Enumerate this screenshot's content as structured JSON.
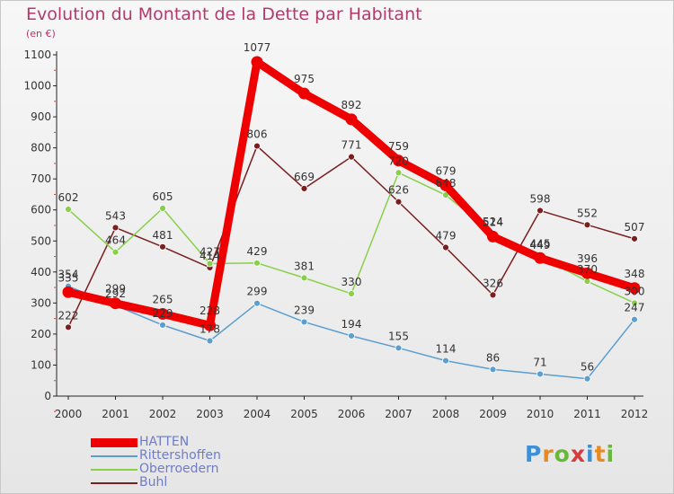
{
  "title": "Evolution du Montant de la Dette par Habitant",
  "unit": "(en €)",
  "brand": {
    "letters": [
      "P",
      "r",
      "o",
      "x",
      "i",
      "t",
      "i"
    ],
    "colors": [
      "#3d8fd6",
      "#e88a1f",
      "#6bb73a",
      "#d63a3a",
      "#3d8fd6",
      "#e88a1f",
      "#6bb73a"
    ]
  },
  "chart_data": {
    "type": "line",
    "categories": [
      "2000",
      "2001",
      "2002",
      "2003",
      "2004",
      "2005",
      "2006",
      "2007",
      "2008",
      "2009",
      "2010",
      "2011",
      "2012"
    ],
    "ylim": [
      0,
      1100
    ],
    "yticks": [
      0,
      100,
      200,
      300,
      400,
      500,
      600,
      700,
      800,
      900,
      1000,
      1100
    ],
    "grid": false,
    "legend_position": "bottom-left",
    "series": [
      {
        "name": "HATTEN",
        "color": "#ee0000",
        "values": [
          335,
          299,
          265,
          228,
          1077,
          975,
          892,
          759,
          679,
          514,
          445,
          396,
          348
        ]
      },
      {
        "name": "Rittershoffen",
        "color": "#5a9fd0",
        "values": [
          354,
          292,
          229,
          178,
          299,
          239,
          194,
          155,
          114,
          86,
          71,
          56,
          247
        ]
      },
      {
        "name": "Oberroedern",
        "color": "#88d04a",
        "values": [
          602,
          464,
          605,
          427,
          429,
          381,
          330,
          720,
          648,
          524,
          449,
          370,
          300
        ]
      },
      {
        "name": "Buhl",
        "color": "#7a1f1f",
        "values": [
          222,
          543,
          481,
          414,
          806,
          669,
          771,
          626,
          479,
          326,
          598,
          552,
          507
        ]
      }
    ]
  }
}
